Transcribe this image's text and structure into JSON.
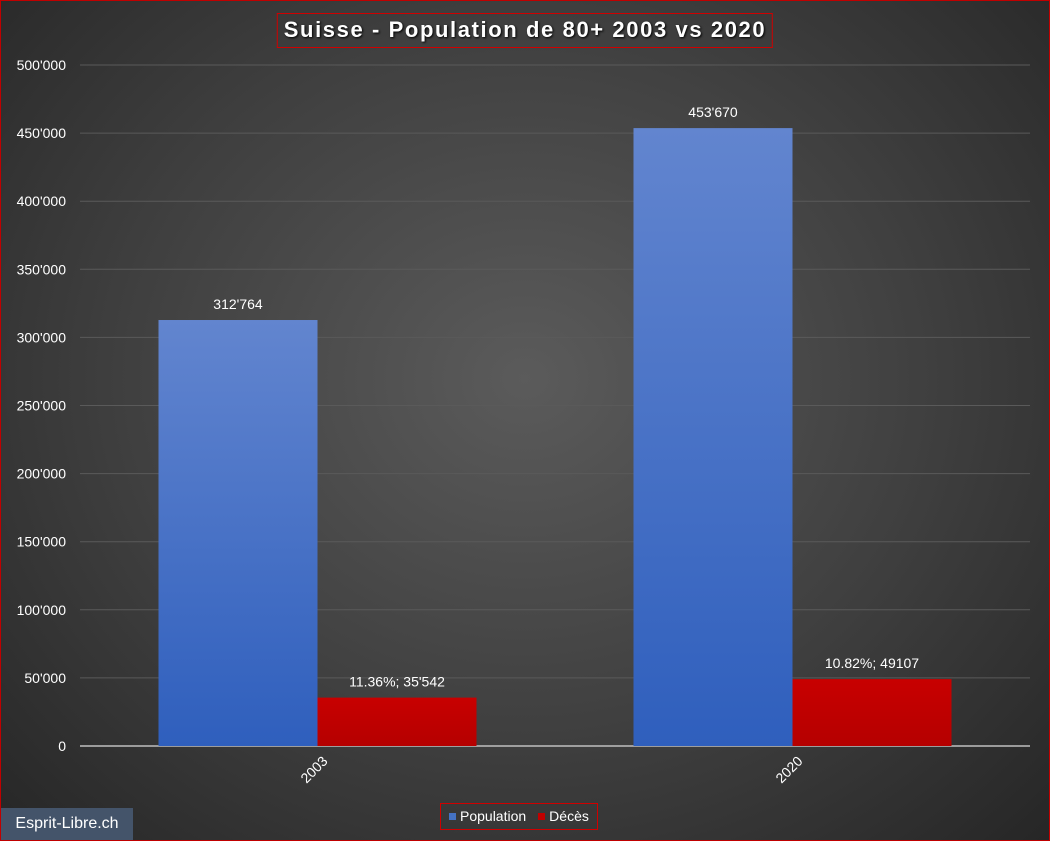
{
  "chart_data": {
    "type": "bar",
    "title": "Suisse - Population  de 80+ 2003 vs 2020",
    "categories": [
      "2003",
      "2020"
    ],
    "series": [
      {
        "name": "Population",
        "color": "#4472c4",
        "values": [
          312764,
          453670
        ],
        "labels": [
          "312'764",
          "453'670"
        ]
      },
      {
        "name": "Décès",
        "color": "#c00000",
        "values": [
          35542,
          49107
        ],
        "labels": [
          "11.36%; 35'542",
          "10.82%; 49107"
        ]
      }
    ],
    "ylim": [
      0,
      500000
    ],
    "yticks": [
      0,
      50000,
      100000,
      150000,
      200000,
      250000,
      300000,
      350000,
      400000,
      450000,
      500000
    ],
    "ytick_labels": [
      "0",
      "50'000",
      "100'000",
      "150'000",
      "200'000",
      "250'000",
      "300'000",
      "350'000",
      "400'000",
      "450'000",
      "500'000"
    ],
    "grid": true,
    "legend_position": "bottom"
  },
  "watermark": "Esprit-Libre.ch"
}
